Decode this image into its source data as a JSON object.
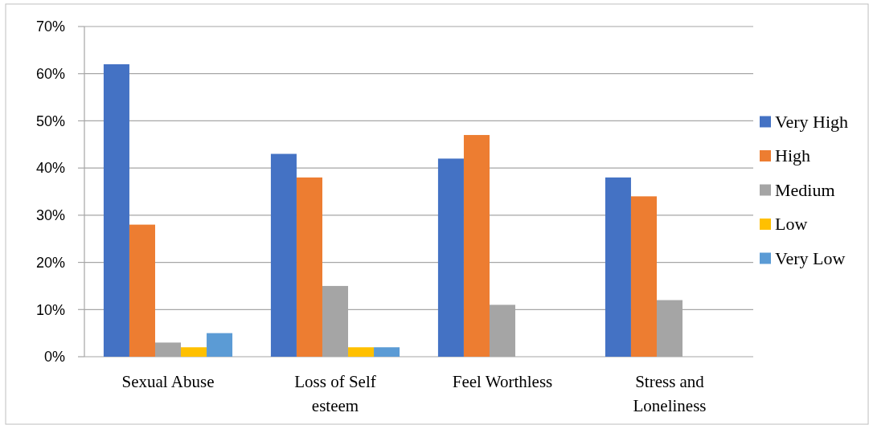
{
  "chart_data": {
    "type": "bar",
    "categories": [
      "Sexual Abuse",
      "Loss of Self esteem",
      "Feel Worthless",
      "Stress and Loneliness"
    ],
    "series": [
      {
        "name": "Very High",
        "color": "#4472c4",
        "values": [
          62,
          43,
          42,
          38
        ]
      },
      {
        "name": "High",
        "color": "#ed7d31",
        "values": [
          28,
          38,
          47,
          34
        ]
      },
      {
        "name": "Medium",
        "color": "#a5a5a5",
        "values": [
          3,
          15,
          11,
          12
        ]
      },
      {
        "name": "Low",
        "color": "#ffc000",
        "values": [
          2,
          2,
          null,
          null
        ]
      },
      {
        "name": "Very Low",
        "color": "#5b9bd5",
        "values": [
          5,
          2,
          null,
          null
        ]
      }
    ],
    "ylim": [
      0,
      70
    ],
    "yticks": [
      {
        "value": 0,
        "label": "0%"
      },
      {
        "value": 10,
        "label": "10%"
      },
      {
        "value": 20,
        "label": "20%"
      },
      {
        "value": 30,
        "label": "30%"
      },
      {
        "value": 40,
        "label": "40%"
      },
      {
        "value": 50,
        "label": "50%"
      },
      {
        "value": 60,
        "label": "60%"
      },
      {
        "value": 70,
        "label": "70%"
      }
    ],
    "grid": "y",
    "legend": "right"
  }
}
